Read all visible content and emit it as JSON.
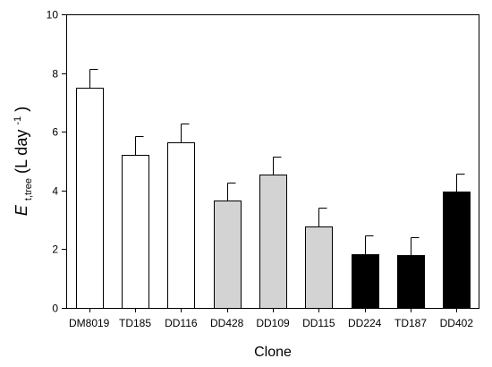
{
  "chart_data": {
    "type": "bar",
    "categories": [
      "DM8019",
      "TD185",
      "DD116",
      "DD428",
      "DD109",
      "DD115",
      "DD224",
      "TD187",
      "DD402"
    ],
    "values": [
      7.5,
      5.2,
      5.65,
      3.65,
      4.55,
      2.78,
      1.83,
      1.8,
      3.95
    ],
    "error_upper": [
      0.65,
      0.65,
      0.63,
      0.63,
      0.6,
      0.62,
      0.63,
      0.62,
      0.62
    ],
    "bar_colors": [
      "#ffffff",
      "#ffffff",
      "#ffffff",
      "#d3d3d3",
      "#d3d3d3",
      "#d3d3d3",
      "#000000",
      "#000000",
      "#000000"
    ],
    "ylim": [
      0,
      10
    ],
    "yticks": [
      0,
      2,
      4,
      6,
      8,
      10
    ],
    "xlabel": "Clone",
    "ylabel": {
      "main": "E",
      "subscript": "t,tree",
      "unit_open": " (L day",
      "unit_sup": "-1",
      "unit_close": ")"
    },
    "grid": false
  }
}
